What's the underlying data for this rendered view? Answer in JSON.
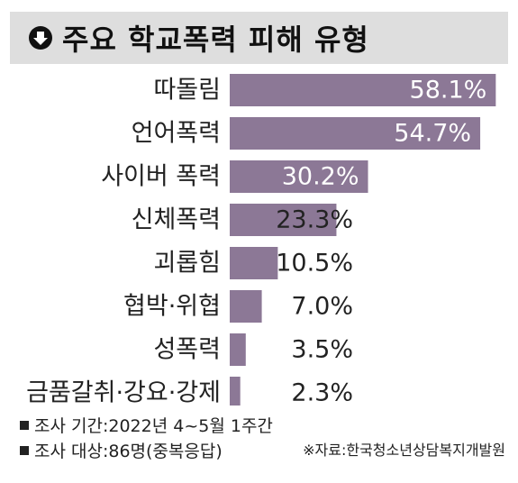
{
  "header": {
    "title": "주요 학교폭력 피해 유형"
  },
  "colors": {
    "bar": "#8c7896",
    "header_bg": "#dedede"
  },
  "chart_data": {
    "type": "bar",
    "orientation": "horizontal",
    "title": "주요 학교폭력 피해 유형",
    "categories": [
      "따돌림",
      "언어폭력",
      "사이버 폭력",
      "신체폭력",
      "괴롭힘",
      "협박·위협",
      "성폭력",
      "금품갈취·강요·강제"
    ],
    "values": [
      58.1,
      54.7,
      30.2,
      23.3,
      10.5,
      7.0,
      3.5,
      2.3
    ],
    "value_labels": [
      "58.1%",
      "54.7%",
      "30.2%",
      "23.3%",
      "10.5%",
      "7.0%",
      "3.5%",
      "2.3%"
    ],
    "xlim": [
      0,
      60
    ],
    "grid": false,
    "xlabel": "",
    "ylabel": ""
  },
  "footnotes": {
    "period": "조사 기간:2022년 4~5월 1주간",
    "target": "조사 대상:86명(중복응답)",
    "source": "※자료:한국청소년상담복지개발원"
  }
}
